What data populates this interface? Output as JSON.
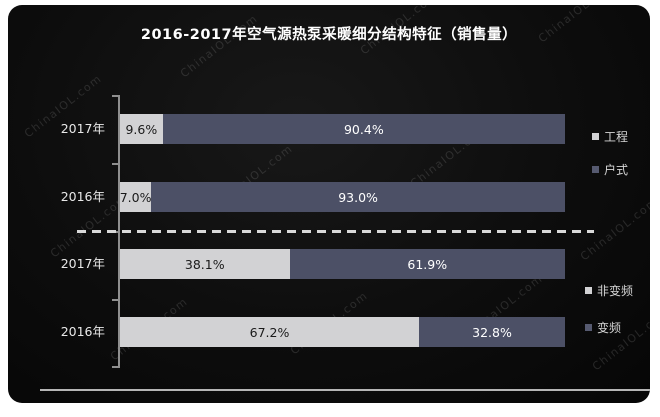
{
  "title": "2016-2017年空气源热泵采暖细分结构特征（销售量）",
  "watermark": {
    "text": "ChinaIOL.com"
  },
  "colors": {
    "page_bg": "#ffffff",
    "card_bg": "#0d0d0d",
    "series_light": "#d2d2d4",
    "series_dark": "#4c5066",
    "label_on_light": "#1a1a1a",
    "label_on_dark": "#ffffff",
    "axis": "#8f8f8f",
    "divider_dash": "#d9d9d9",
    "baseline": "#b6b6b6",
    "category_text": "#e8e8e8",
    "legend_text": "#d6d6d6",
    "title_text": "#ffffff"
  },
  "chart_data": [
    {
      "type": "bar",
      "orientation": "horizontal",
      "stacked": true,
      "unit": "percent",
      "xlim": [
        0,
        100
      ],
      "grid": false,
      "legend_position": "right",
      "categories": [
        "2017年",
        "2016年"
      ],
      "series": [
        {
          "name": "工程",
          "color": "#d2d2d4",
          "values": [
            9.6,
            7.0
          ]
        },
        {
          "name": "户式",
          "color": "#4c5066",
          "values": [
            90.4,
            93.0
          ]
        }
      ],
      "labels": [
        [
          "9.6%",
          "90.4%"
        ],
        [
          "7.0%",
          "93.0%"
        ]
      ]
    },
    {
      "type": "bar",
      "orientation": "horizontal",
      "stacked": true,
      "unit": "percent",
      "xlim": [
        0,
        100
      ],
      "grid": false,
      "legend_position": "right",
      "categories": [
        "2017年",
        "2016年"
      ],
      "series": [
        {
          "name": "非变频",
          "color": "#d2d2d4",
          "values": [
            38.1,
            67.2
          ]
        },
        {
          "name": "变频",
          "color": "#4c5066",
          "values": [
            61.9,
            32.8
          ]
        }
      ],
      "labels": [
        [
          "38.1%",
          "61.9%"
        ],
        [
          "67.2%",
          "32.8%"
        ]
      ]
    }
  ]
}
